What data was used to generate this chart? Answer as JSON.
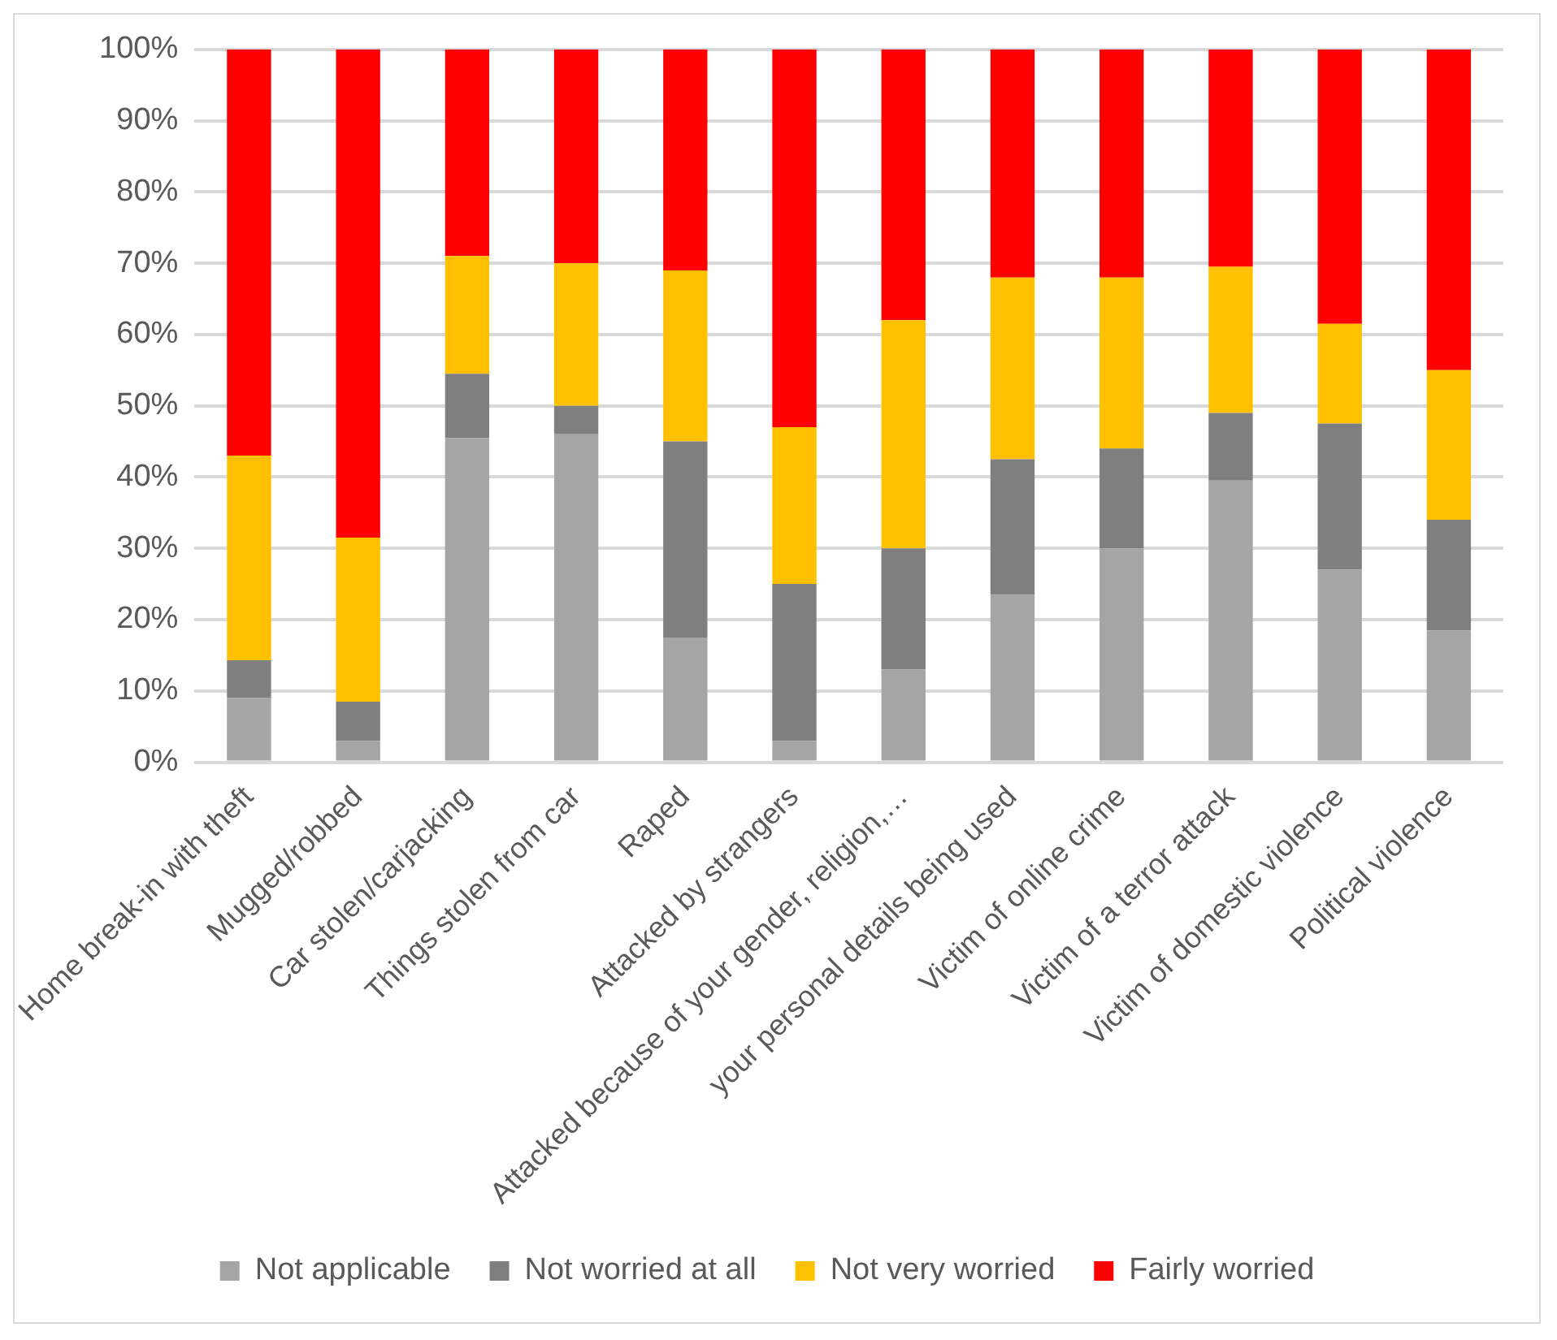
{
  "chart_data": {
    "type": "bar",
    "stacked": true,
    "categories": [
      "Home break-in with theft",
      "Mugged/robbed",
      "Car stolen/carjacking",
      "Things stolen from car",
      "Raped",
      "Attacked by strangers",
      "Attacked because of your gender, religion,…",
      "your personal details being used",
      "Victim of online crime",
      "Victim of a terror attack",
      "Victim of domestic violence",
      "Political violence"
    ],
    "series": [
      {
        "name": "Not applicable",
        "color": "#a5a5a5",
        "values": [
          9,
          3,
          45.5,
          46,
          17.5,
          3,
          13,
          23.5,
          30,
          39.5,
          27,
          18.5
        ]
      },
      {
        "name": "Not worried at all",
        "color": "#7f7f7f",
        "values": [
          5.3,
          5.5,
          9,
          4,
          27.5,
          22,
          17,
          19,
          14,
          9.5,
          20.5,
          15.5
        ]
      },
      {
        "name": "Not very worried",
        "color": "#ffc000",
        "values": [
          28.7,
          23,
          16.5,
          20,
          24,
          22,
          32,
          25.5,
          24,
          20.5,
          14,
          21
        ]
      },
      {
        "name": "Fairly worried",
        "color": "#ff0000",
        "values": [
          57,
          68.5,
          29,
          30,
          31,
          53,
          38,
          32,
          32,
          30.5,
          38.5,
          45
        ]
      }
    ],
    "ylim": [
      0,
      100
    ],
    "yticks": [
      {
        "value": 0,
        "label": "0%"
      },
      {
        "value": 10,
        "label": "10%"
      },
      {
        "value": 20,
        "label": "20%"
      },
      {
        "value": 30,
        "label": "30%"
      },
      {
        "value": 40,
        "label": "40%"
      },
      {
        "value": 50,
        "label": "50%"
      },
      {
        "value": 60,
        "label": "60%"
      },
      {
        "value": 70,
        "label": "70%"
      },
      {
        "value": 80,
        "label": "80%"
      },
      {
        "value": 90,
        "label": "90%"
      },
      {
        "value": 100,
        "label": "100%"
      }
    ],
    "grid": "y",
    "legend": "bottom"
  }
}
